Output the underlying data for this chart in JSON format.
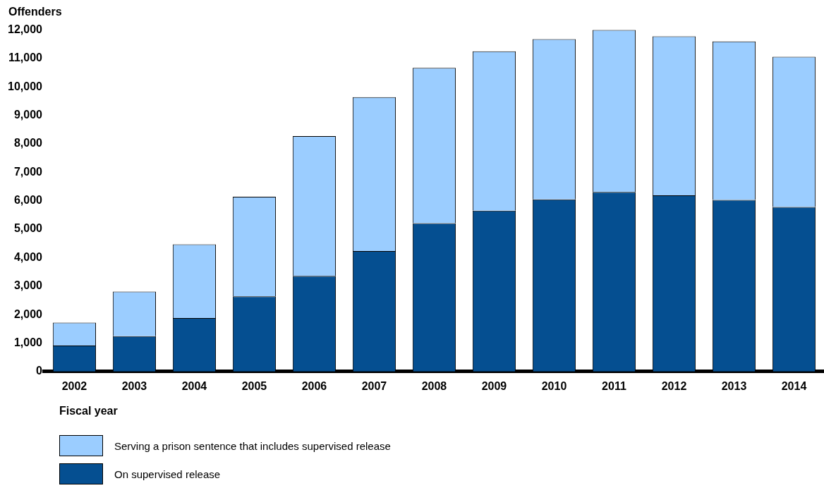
{
  "chart_data": {
    "type": "bar",
    "stacked": true,
    "ylabel": "Offenders",
    "xlabel": "Fiscal year",
    "categories": [
      "2002",
      "2003",
      "2004",
      "2005",
      "2006",
      "2007",
      "2008",
      "2009",
      "2010",
      "2011",
      "2012",
      "2013",
      "2014"
    ],
    "series": [
      {
        "name": "On supervised release",
        "color": "#054f91",
        "values": [
          910,
          1240,
          1880,
          2640,
          3360,
          4230,
          5210,
          5650,
          6050,
          6310,
          6190,
          6030,
          5780
        ]
      },
      {
        "name": "Serving a prison sentence that includes supervised release",
        "color": "#9bcdff",
        "values": [
          810,
          1570,
          2590,
          3500,
          4910,
          5410,
          5460,
          5600,
          5630,
          5690,
          5590,
          5570,
          5280
        ]
      }
    ],
    "ylim": [
      0,
      12000
    ],
    "yticks": [
      0,
      {
        "value": 1000,
        "label": "1,000"
      },
      {
        "value": 2000,
        "label": "2,000"
      },
      {
        "value": 3000,
        "label": "3,000"
      },
      {
        "value": 4000,
        "label": "4,000"
      },
      {
        "value": 5000,
        "label": "5,000"
      },
      {
        "value": 6000,
        "label": "6,000"
      },
      {
        "value": 7000,
        "label": "7,000"
      },
      {
        "value": 8000,
        "label": "8,000"
      },
      {
        "value": 9000,
        "label": "9,000"
      },
      {
        "value": 10000,
        "label": "10,000"
      },
      {
        "value": 11000,
        "label": "11,000"
      },
      {
        "value": 12000,
        "label": "12,000"
      }
    ],
    "grid": false,
    "legend": "bottom left"
  }
}
